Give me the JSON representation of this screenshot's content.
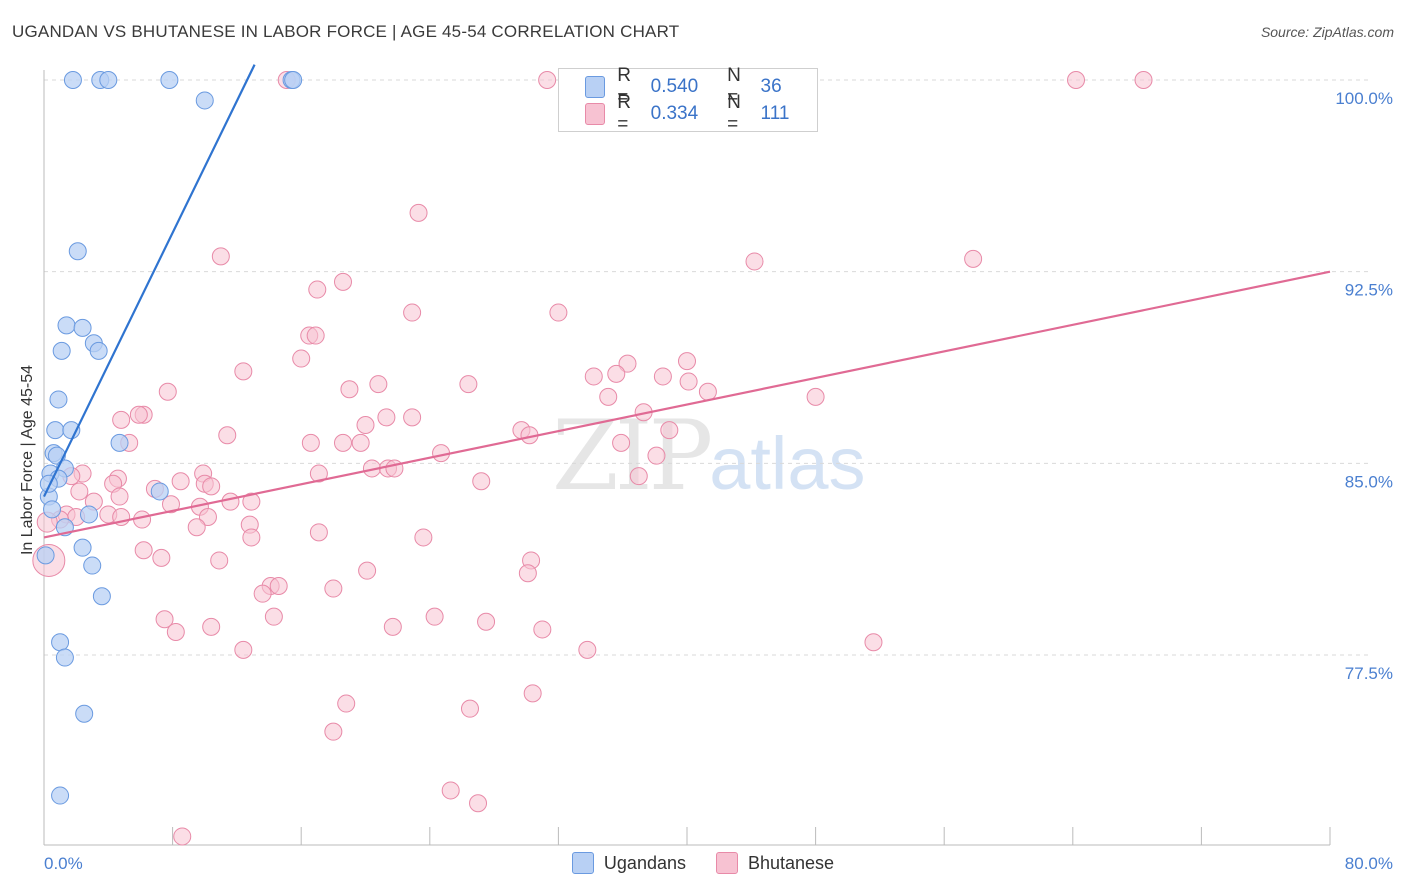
{
  "title": "UGANDAN VS BHUTANESE IN LABOR FORCE | AGE 45-54 CORRELATION CHART",
  "source": "Source: ZipAtlas.com",
  "watermark": {
    "zip": "ZIP",
    "atlas": "atlas"
  },
  "legend": {
    "rows": [
      {
        "r_label": "R =",
        "r_value": "0.540",
        "n_label": "N =",
        "n_value": "36",
        "color": "#b8d0f4"
      },
      {
        "r_label": "R =",
        "r_value": "0.334",
        "n_label": "N =",
        "n_value": "111",
        "color": "#f7c2d2"
      }
    ]
  },
  "bottom_legend": {
    "ugandans": "Ugandans",
    "bhutanese": "Bhutanese"
  },
  "colors": {
    "ugandans_fill": "#b8d0f4",
    "ugandans_stroke": "#6a9ae0",
    "ugandans_line": "#2f74d0",
    "bhutanese_fill": "#f7c2d2",
    "bhutanese_stroke": "#e88aa8",
    "bhutanese_line": "#e06a94",
    "tick": "#4a7fd0"
  },
  "chart_data": {
    "type": "scatter",
    "title": "UGANDAN VS BHUTANESE IN LABOR FORCE | AGE 45-54 CORRELATION CHART",
    "xlabel": "",
    "ylabel": "In Labor Force | Age 45-54",
    "xlim": [
      0,
      80
    ],
    "ylim": [
      70.2,
      100.6
    ],
    "x_tick_labels": [
      "0.0%",
      "80.0%"
    ],
    "y_ticks": [
      77.5,
      85.0,
      92.5,
      100.0
    ],
    "y_tick_labels": [
      "77.5%",
      "85.0%",
      "92.5%",
      "100.0%"
    ],
    "grid": "horizontal dashed",
    "series": [
      {
        "name": "Ugandans",
        "R": 0.54,
        "N": 36,
        "trend": {
          "x": [
            0.0,
            13.1
          ],
          "y": [
            83.7,
            100.6
          ]
        },
        "points": [
          [
            1.8,
            100.0
          ],
          [
            3.5,
            100.0
          ],
          [
            4.0,
            100.0
          ],
          [
            7.8,
            100.0
          ],
          [
            15.4,
            100.0
          ],
          [
            15.5,
            100.0
          ],
          [
            10.0,
            99.2
          ],
          [
            2.1,
            93.3
          ],
          [
            1.4,
            90.4
          ],
          [
            2.4,
            90.3
          ],
          [
            1.1,
            89.4
          ],
          [
            3.1,
            89.7
          ],
          [
            3.4,
            89.4
          ],
          [
            0.9,
            87.5
          ],
          [
            0.7,
            86.3
          ],
          [
            1.7,
            86.3
          ],
          [
            4.7,
            85.8
          ],
          [
            0.6,
            85.4
          ],
          [
            0.8,
            85.3
          ],
          [
            1.3,
            84.8
          ],
          [
            0.4,
            84.6
          ],
          [
            0.9,
            84.4
          ],
          [
            7.2,
            83.9
          ],
          [
            0.3,
            83.7
          ],
          [
            0.5,
            83.2
          ],
          [
            1.3,
            82.5
          ],
          [
            2.8,
            83.0
          ],
          [
            2.4,
            81.7
          ],
          [
            3.0,
            81.0
          ],
          [
            0.1,
            81.4
          ],
          [
            3.6,
            79.8
          ],
          [
            1.0,
            78.0
          ],
          [
            1.3,
            77.4
          ],
          [
            2.5,
            75.2
          ],
          [
            1.0,
            72.0
          ],
          [
            0.3,
            84.2
          ]
        ]
      },
      {
        "name": "Bhutanese",
        "R": 0.334,
        "N": 111,
        "trend": {
          "x": [
            0.0,
            80.0
          ],
          "y": [
            82.1,
            92.5
          ]
        },
        "points": [
          [
            31.3,
            100.0
          ],
          [
            64.2,
            100.0
          ],
          [
            68.4,
            100.0
          ],
          [
            15.1,
            100.0
          ],
          [
            23.3,
            94.8
          ],
          [
            11.0,
            93.1
          ],
          [
            57.8,
            93.0
          ],
          [
            44.2,
            92.9
          ],
          [
            18.6,
            92.1
          ],
          [
            17.0,
            91.8
          ],
          [
            22.9,
            90.9
          ],
          [
            32.0,
            90.9
          ],
          [
            16.5,
            90.0
          ],
          [
            16.9,
            90.0
          ],
          [
            16.0,
            89.1
          ],
          [
            36.3,
            88.9
          ],
          [
            40.0,
            89.0
          ],
          [
            12.4,
            88.6
          ],
          [
            34.2,
            88.4
          ],
          [
            35.6,
            88.5
          ],
          [
            38.5,
            88.4
          ],
          [
            40.1,
            88.2
          ],
          [
            20.8,
            88.1
          ],
          [
            19.0,
            87.9
          ],
          [
            41.3,
            87.8
          ],
          [
            48.0,
            87.6
          ],
          [
            26.4,
            88.1
          ],
          [
            7.7,
            87.8
          ],
          [
            35.1,
            87.6
          ],
          [
            37.3,
            87.0
          ],
          [
            21.3,
            86.8
          ],
          [
            6.2,
            86.9
          ],
          [
            5.9,
            86.9
          ],
          [
            22.9,
            86.8
          ],
          [
            4.8,
            86.7
          ],
          [
            29.7,
            86.3
          ],
          [
            30.2,
            86.1
          ],
          [
            20.0,
            86.5
          ],
          [
            11.4,
            86.1
          ],
          [
            38.9,
            86.3
          ],
          [
            16.6,
            85.8
          ],
          [
            35.9,
            85.8
          ],
          [
            19.7,
            85.8
          ],
          [
            18.6,
            85.8
          ],
          [
            24.7,
            85.4
          ],
          [
            38.1,
            85.3
          ],
          [
            5.3,
            85.8
          ],
          [
            20.4,
            84.8
          ],
          [
            21.4,
            84.8
          ],
          [
            21.8,
            84.8
          ],
          [
            2.4,
            84.6
          ],
          [
            17.1,
            84.6
          ],
          [
            9.9,
            84.6
          ],
          [
            1.7,
            84.5
          ],
          [
            27.2,
            84.3
          ],
          [
            4.6,
            84.4
          ],
          [
            8.5,
            84.3
          ],
          [
            10.0,
            84.2
          ],
          [
            10.4,
            84.1
          ],
          [
            4.3,
            84.2
          ],
          [
            6.9,
            84.0
          ],
          [
            37.0,
            84.5
          ],
          [
            2.2,
            83.9
          ],
          [
            4.7,
            83.7
          ],
          [
            3.1,
            83.5
          ],
          [
            9.7,
            83.3
          ],
          [
            7.9,
            83.4
          ],
          [
            12.9,
            83.5
          ],
          [
            11.6,
            83.5
          ],
          [
            4.0,
            83.0
          ],
          [
            1.4,
            83.0
          ],
          [
            2.0,
            82.9
          ],
          [
            10.2,
            82.9
          ],
          [
            1.0,
            82.8
          ],
          [
            6.1,
            82.8
          ],
          [
            4.8,
            82.9
          ],
          [
            12.8,
            82.6
          ],
          [
            17.1,
            82.3
          ],
          [
            9.5,
            82.5
          ],
          [
            23.6,
            82.1
          ],
          [
            12.9,
            82.1
          ],
          [
            30.3,
            81.2
          ],
          [
            6.2,
            81.6
          ],
          [
            7.3,
            81.3
          ],
          [
            10.9,
            81.2
          ],
          [
            20.1,
            80.8
          ],
          [
            30.1,
            80.7
          ],
          [
            14.1,
            80.2
          ],
          [
            14.6,
            80.2
          ],
          [
            18.0,
            80.1
          ],
          [
            13.6,
            79.9
          ],
          [
            24.3,
            79.0
          ],
          [
            14.3,
            79.0
          ],
          [
            7.5,
            78.9
          ],
          [
            10.4,
            78.6
          ],
          [
            8.2,
            78.4
          ],
          [
            21.7,
            78.6
          ],
          [
            27.5,
            78.8
          ],
          [
            31.0,
            78.5
          ],
          [
            33.8,
            77.7
          ],
          [
            51.6,
            78.0
          ],
          [
            12.4,
            77.7
          ],
          [
            26.5,
            75.4
          ],
          [
            30.4,
            76.0
          ],
          [
            18.8,
            75.6
          ],
          [
            18.0,
            74.5
          ],
          [
            25.3,
            72.2
          ],
          [
            27.0,
            71.7
          ],
          [
            8.6,
            70.4
          ],
          [
            0.3,
            81.2
          ],
          [
            0.2,
            82.7
          ]
        ]
      }
    ]
  }
}
